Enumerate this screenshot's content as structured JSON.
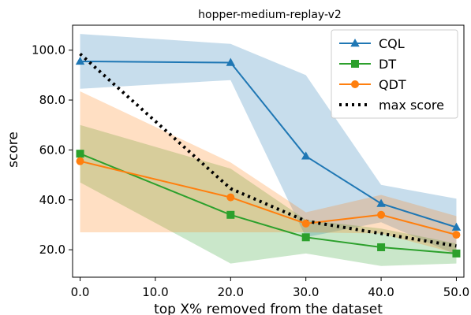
{
  "chart_data": {
    "type": "line",
    "title": "hopper-medium-replay-v2",
    "xlabel": "top X% removed from the dataset",
    "ylabel": "score",
    "x": [
      0.0,
      20.0,
      30.0,
      40.0,
      50.0
    ],
    "xlim": [
      -1.0,
      51.0
    ],
    "ylim": [
      9.0,
      110.0
    ],
    "xticks": [
      0.0,
      10.0,
      20.0,
      30.0,
      40.0,
      50.0
    ],
    "xtick_labels": [
      "0.0",
      "10.0",
      "20.0",
      "30.0",
      "40.0",
      "50.0"
    ],
    "yticks": [
      20.0,
      40.0,
      60.0,
      80.0,
      100.0
    ],
    "ytick_labels": [
      "20.0",
      "40.0",
      "60.0",
      "80.0",
      "100.0"
    ],
    "grid": false,
    "legend_position": "top-right",
    "series": [
      {
        "name": "CQL",
        "color": "#1f77b4",
        "marker": "triangle",
        "values": [
          95.5,
          95.0,
          57.5,
          38.5,
          29.0
        ],
        "lower": [
          84.5,
          88.0,
          25.0,
          31.0,
          18.0
        ],
        "upper": [
          106.5,
          102.5,
          90.0,
          46.0,
          40.5
        ]
      },
      {
        "name": "DT",
        "color": "#2ca02c",
        "marker": "square",
        "values": [
          58.5,
          34.0,
          25.0,
          21.0,
          18.5
        ],
        "lower": [
          47.0,
          14.5,
          18.5,
          13.5,
          14.5
        ],
        "upper": [
          70.0,
          52.5,
          32.0,
          28.5,
          22.5
        ]
      },
      {
        "name": "QDT",
        "color": "#ff7f0e",
        "marker": "circle",
        "values": [
          55.5,
          41.0,
          30.5,
          34.0,
          26.0
        ],
        "lower": [
          27.0,
          27.0,
          27.0,
          26.5,
          18.5
        ],
        "upper": [
          83.5,
          55.0,
          35.0,
          42.0,
          33.5
        ]
      },
      {
        "name": "max score",
        "color": "#000000",
        "style": "dotted",
        "values": [
          98.5,
          44.5,
          31.5,
          26.5,
          21.5
        ]
      }
    ]
  }
}
